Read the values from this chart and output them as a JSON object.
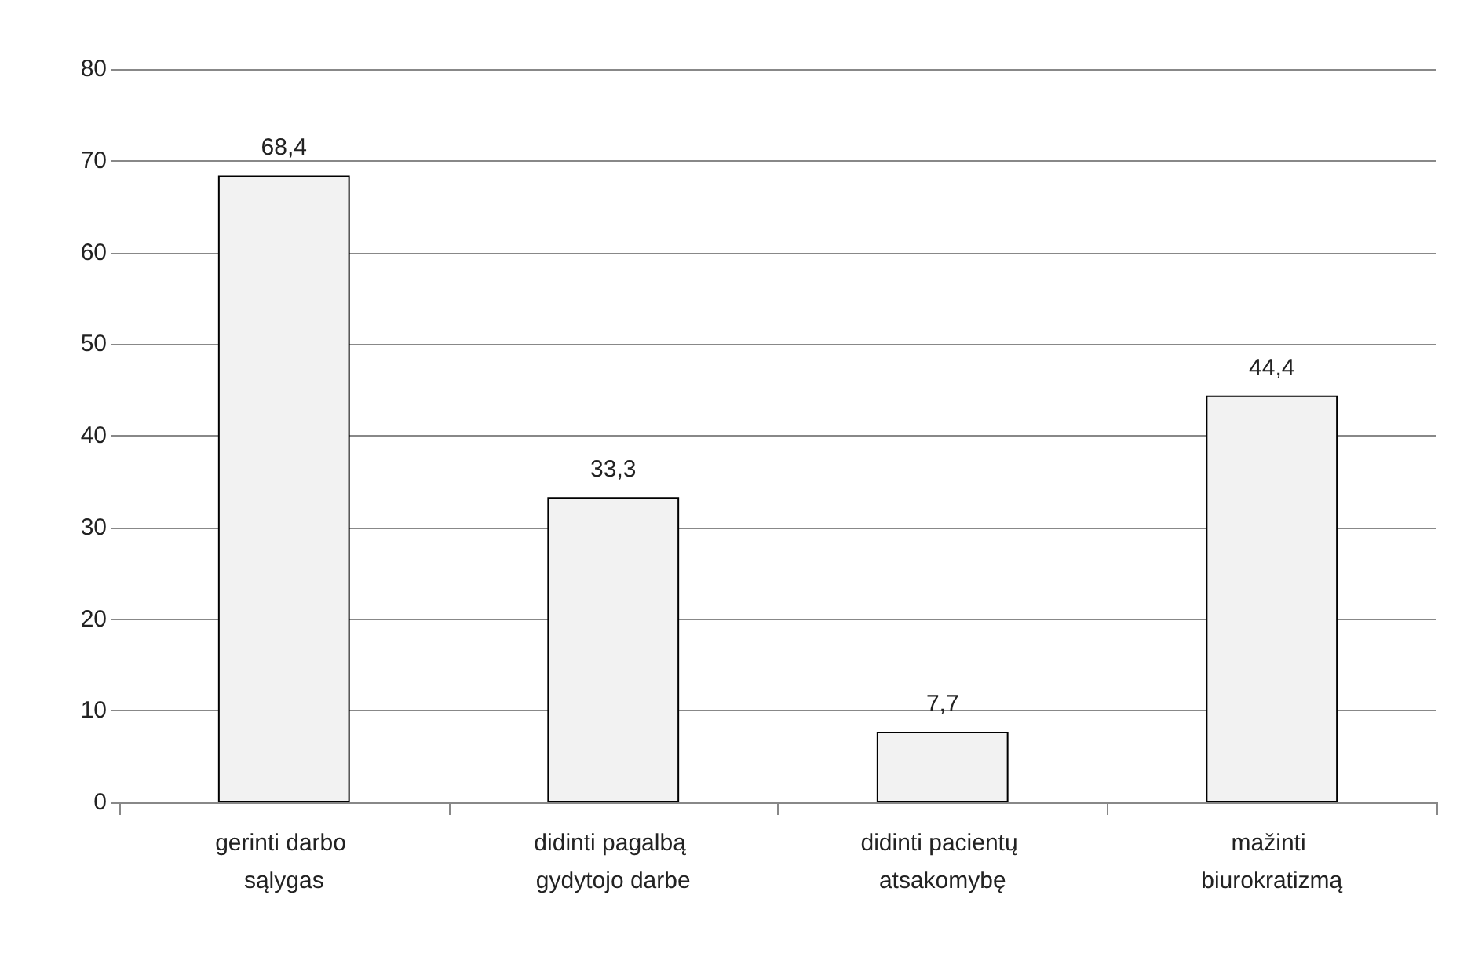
{
  "chart_data": {
    "type": "bar",
    "categories": [
      "gerinti darbo sąlygas",
      "didinti pagalbą gydytojo darbe",
      "didinti pacientų atsakomybę",
      "mažinti biurokratizmą"
    ],
    "values": [
      68.4,
      33.3,
      7.7,
      44.4
    ],
    "value_labels": [
      "68,4",
      "33,3",
      "7,7",
      "44,4"
    ],
    "color": "#f2f2f2",
    "ylim": [
      0,
      80
    ],
    "yticks": [
      0,
      10,
      20,
      30,
      40,
      50,
      60,
      70,
      80
    ],
    "grid": "y"
  }
}
